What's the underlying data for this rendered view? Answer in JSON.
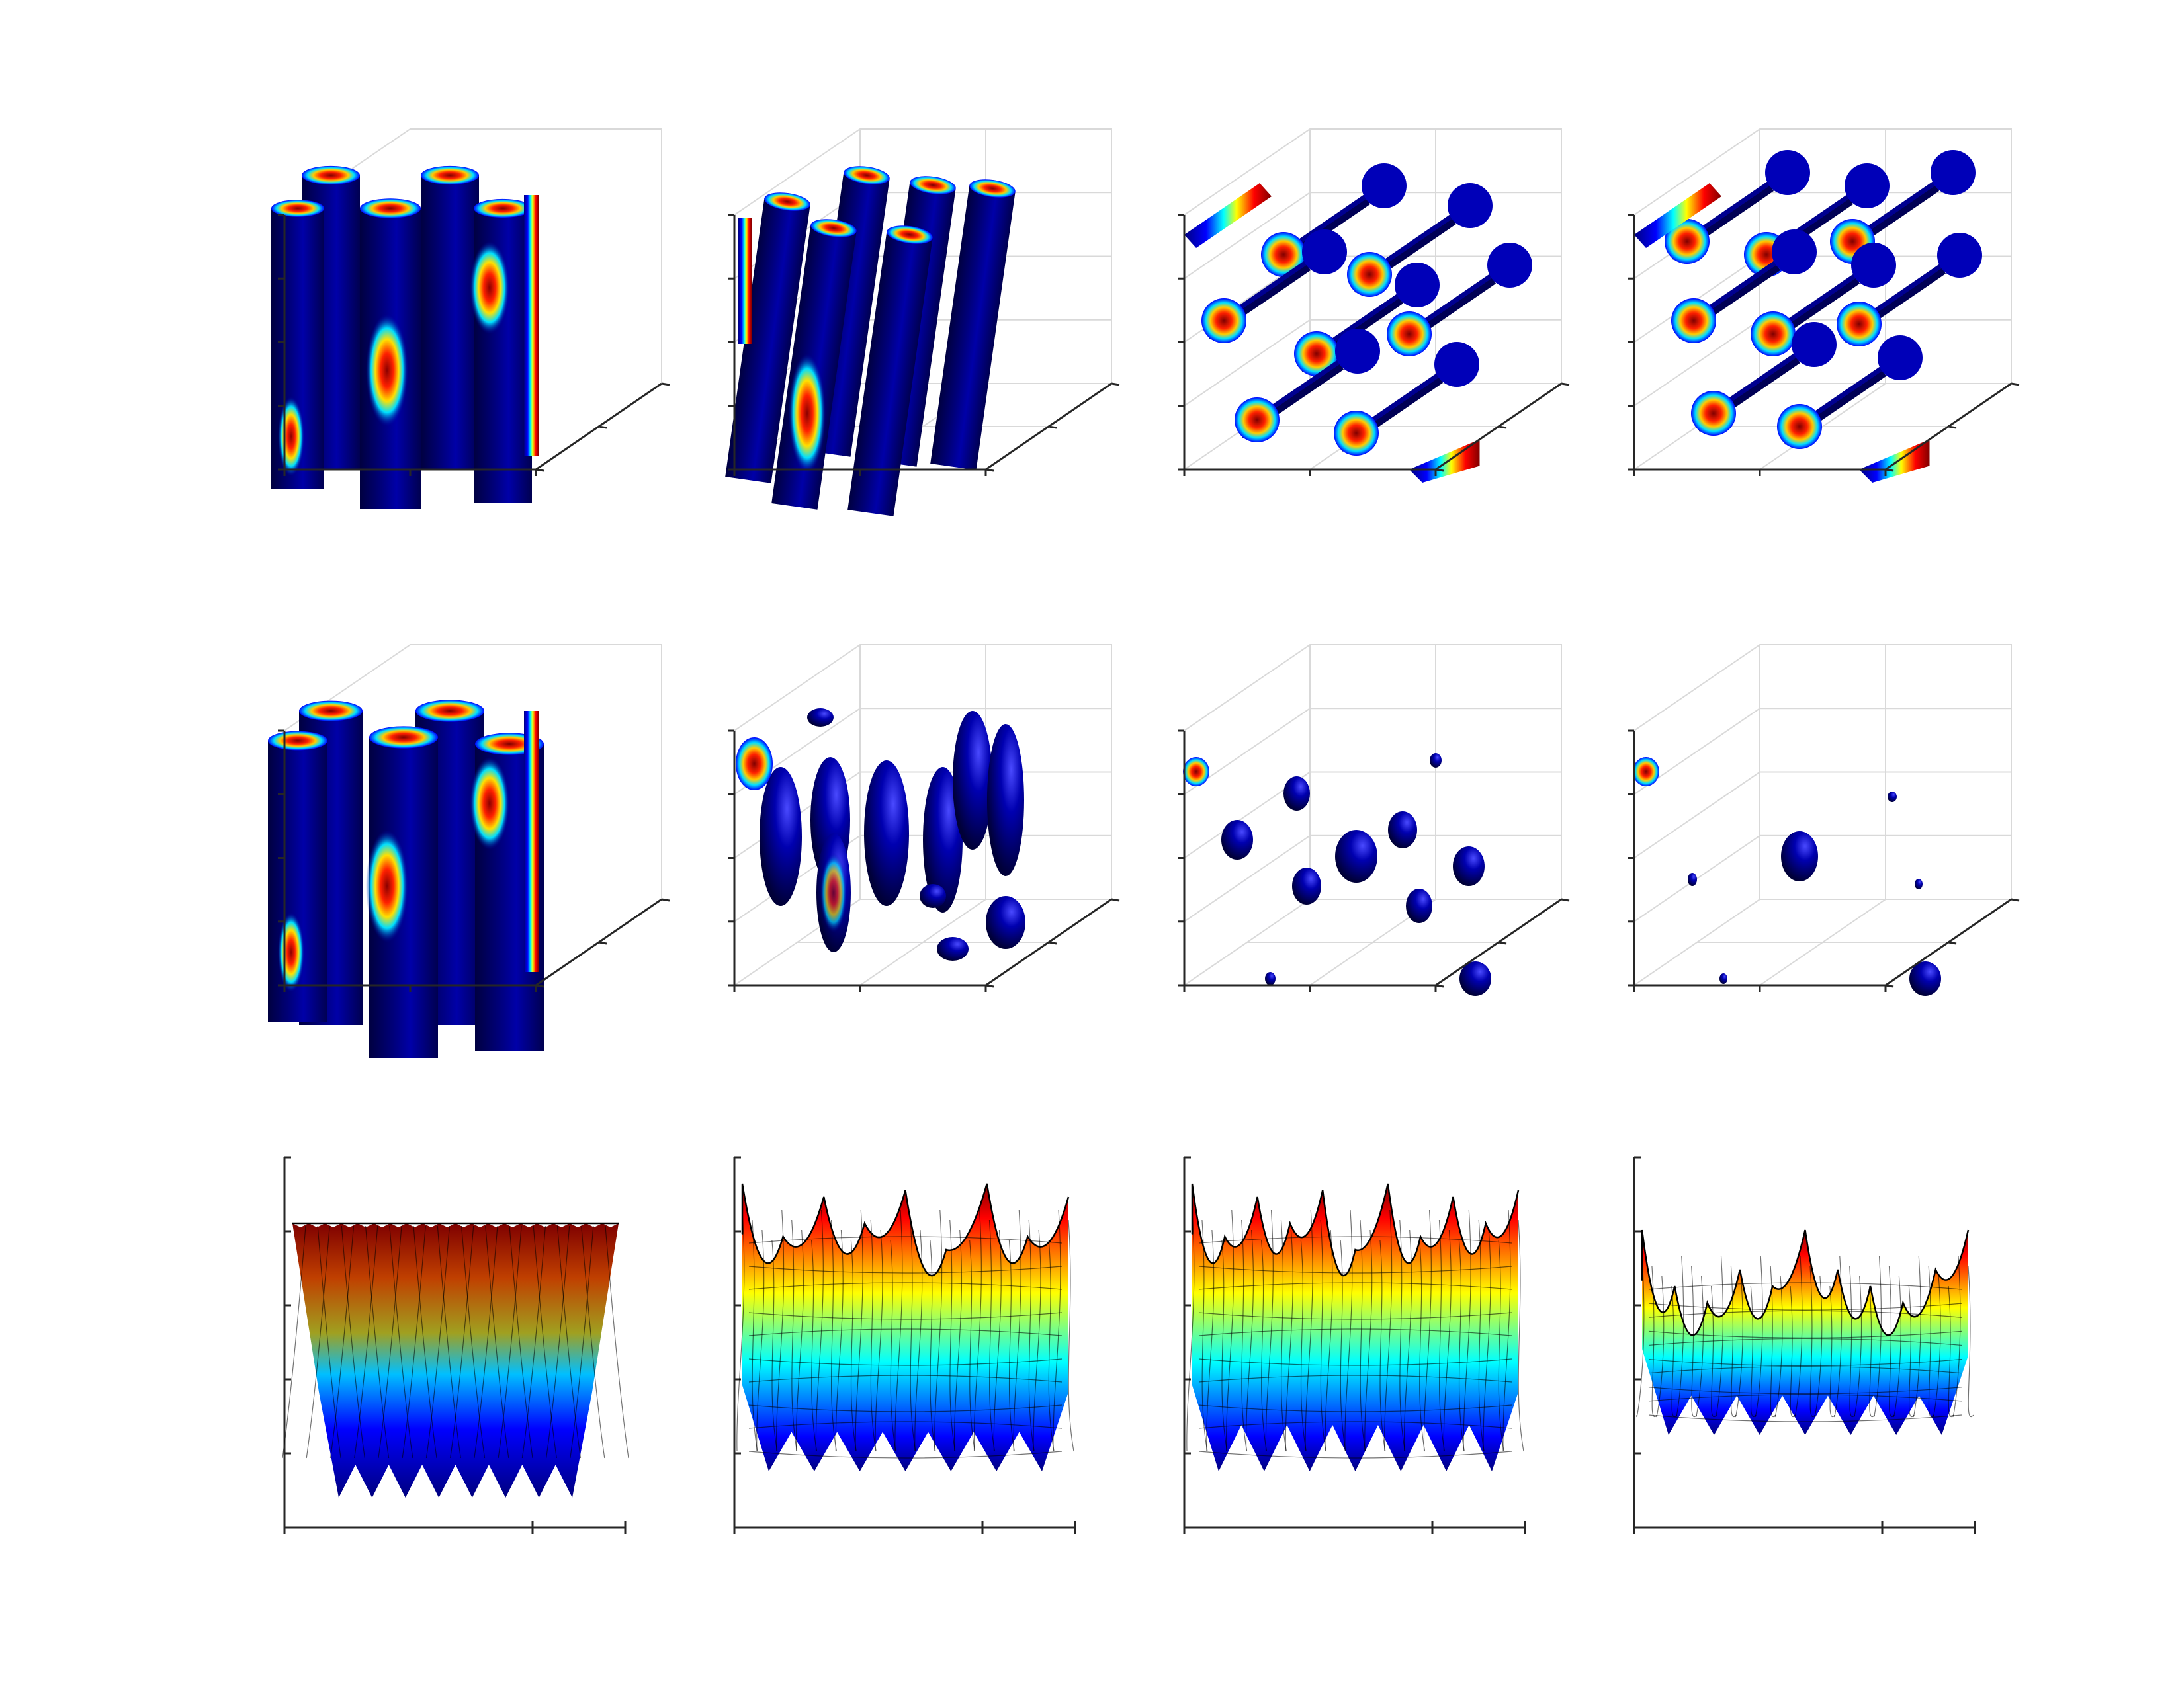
{
  "figure": {
    "layout": {
      "rows": 3,
      "columns": 4
    },
    "colormap": [
      "#00007f",
      "#0000ff",
      "#00ffff",
      "#ffff00",
      "#ff0000",
      "#7f0000"
    ],
    "background": "#ffffff",
    "panels": [
      {
        "row": 1,
        "col": 1,
        "kind": "3d-isosurface",
        "shape": "vertical-cylinders",
        "grid": false
      },
      {
        "row": 1,
        "col": 2,
        "kind": "3d-isosurface",
        "shape": "tilted-cylinders",
        "grid": true
      },
      {
        "row": 1,
        "col": 3,
        "kind": "3d-isosurface",
        "shape": "horizontal-cylinders",
        "grid": true
      },
      {
        "row": 1,
        "col": 4,
        "kind": "3d-isosurface",
        "shape": "horizontal-cylinders",
        "grid": true
      },
      {
        "row": 2,
        "col": 1,
        "kind": "3d-isosurface",
        "shape": "vertical-cylinders",
        "grid": false
      },
      {
        "row": 2,
        "col": 2,
        "kind": "3d-isosurface",
        "shape": "ellipsoids",
        "grid": true
      },
      {
        "row": 2,
        "col": 3,
        "kind": "3d-isosurface",
        "shape": "spheres",
        "grid": true
      },
      {
        "row": 2,
        "col": 4,
        "kind": "3d-isosurface",
        "shape": "sparse-spheres",
        "grid": true
      },
      {
        "row": 3,
        "col": 1,
        "kind": "surface",
        "shape": "mesh-surface",
        "grid": false
      },
      {
        "row": 3,
        "col": 2,
        "kind": "surface",
        "shape": "mesh-surface",
        "grid": false
      },
      {
        "row": 3,
        "col": 3,
        "kind": "surface",
        "shape": "mesh-surface",
        "grid": false
      },
      {
        "row": 3,
        "col": 4,
        "kind": "surface",
        "shape": "mesh-surface",
        "grid": false
      }
    ]
  }
}
